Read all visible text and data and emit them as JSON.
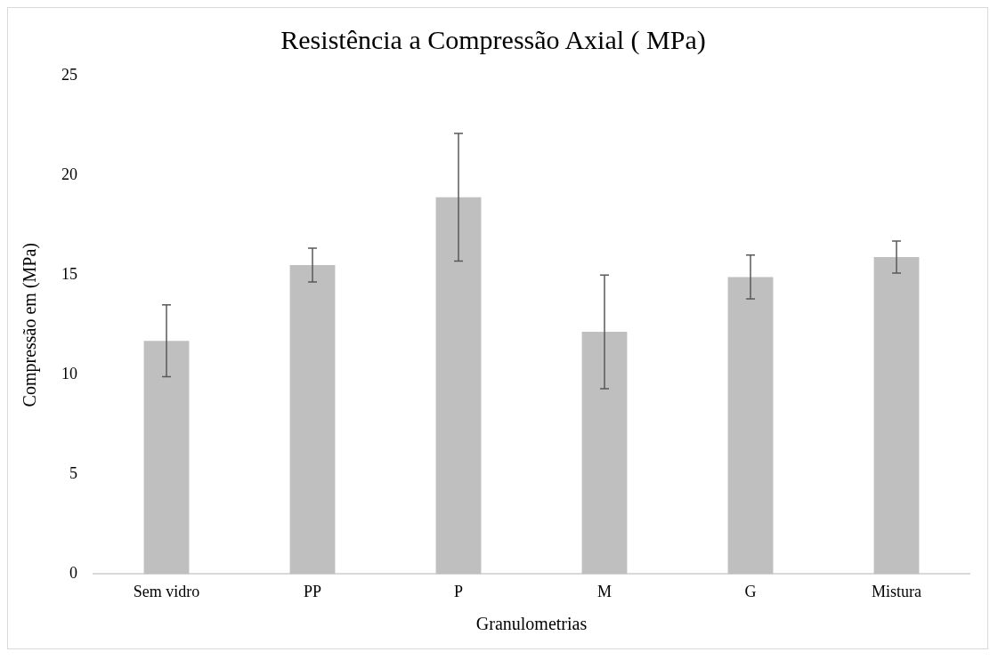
{
  "chart_data": {
    "type": "bar",
    "title": "Resistência a Compressão Axial ( MPa)",
    "xlabel": "Granulometrias",
    "ylabel": "Compressão em (MPa)",
    "categories": [
      "Sem vidro",
      "PP",
      "P",
      "M",
      "G",
      "Mistura"
    ],
    "values": [
      11.7,
      15.5,
      18.9,
      12.15,
      14.9,
      15.9
    ],
    "errors": [
      1.8,
      0.85,
      3.2,
      2.85,
      1.1,
      0.8
    ],
    "color": "#bfbfbf",
    "ylim": [
      0,
      25
    ],
    "yticks": [
      0,
      5,
      10,
      15,
      20,
      25
    ],
    "grid": false,
    "legend": false
  }
}
